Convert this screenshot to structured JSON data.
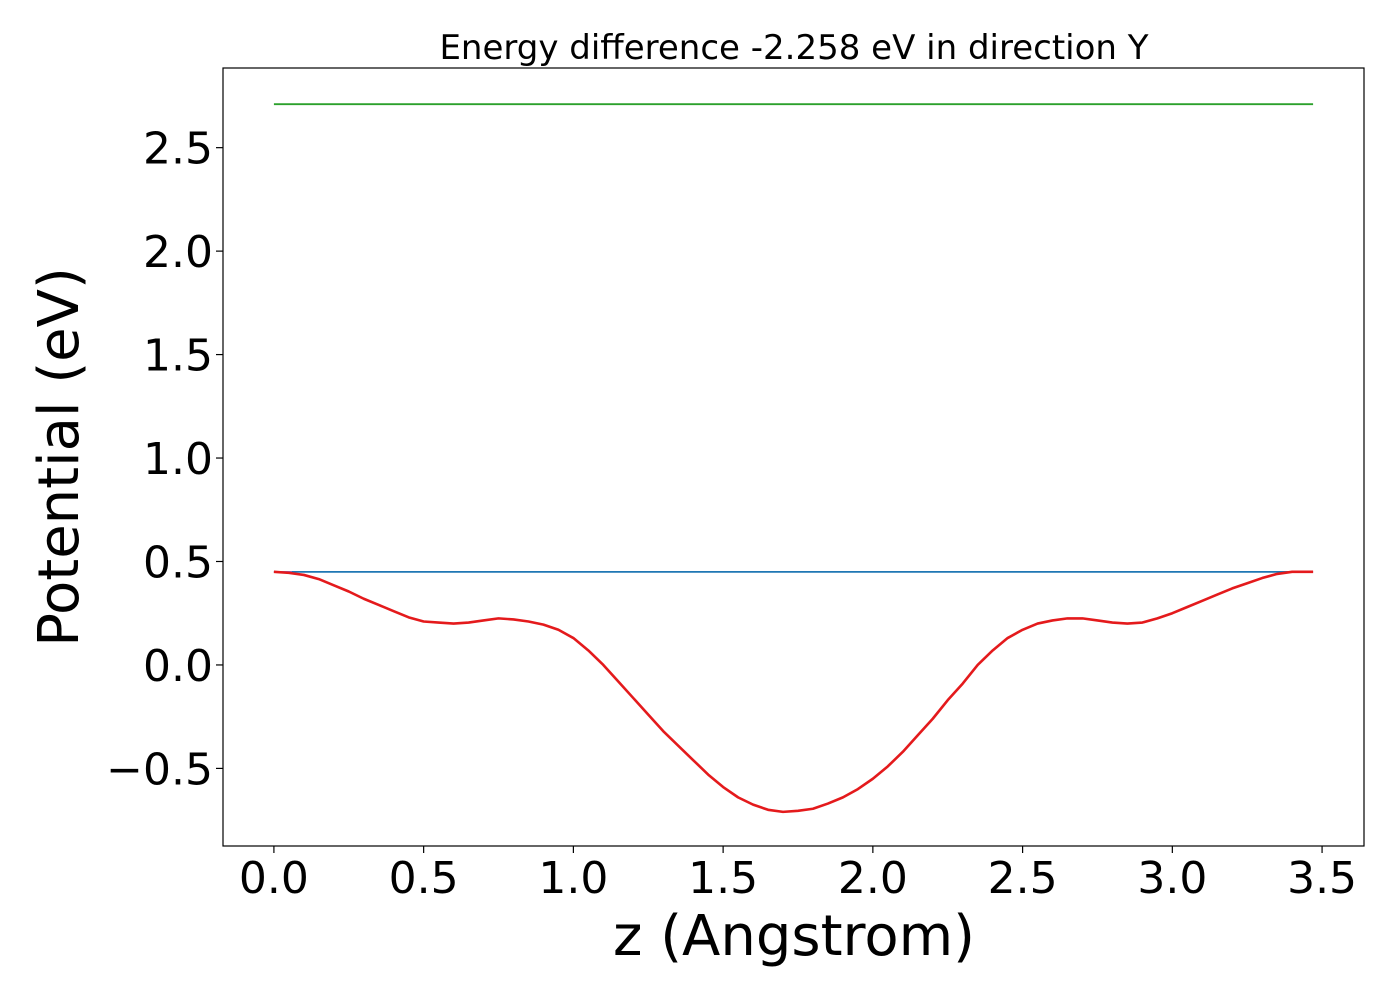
{
  "chart_data": {
    "type": "line",
    "title": "Energy difference -2.258 eV in direction Y",
    "xlabel": "z (Angstrom)",
    "ylabel": "Potential (eV)",
    "xlim": [
      -0.17,
      3.64
    ],
    "ylim": [
      -0.875,
      2.885
    ],
    "xticks": [
      0.0,
      0.5,
      1.0,
      1.5,
      2.0,
      2.5,
      3.0,
      3.5
    ],
    "xtick_labels": [
      "0.0",
      "0.5",
      "1.0",
      "1.5",
      "2.0",
      "2.5",
      "3.0",
      "3.5"
    ],
    "yticks": [
      -0.5,
      0.0,
      0.5,
      1.0,
      1.5,
      2.0,
      2.5
    ],
    "ytick_labels": [
      "−0.5",
      "0.0",
      "0.5",
      "1.0",
      "1.5",
      "2.0",
      "2.5"
    ],
    "grid": false,
    "series": [
      {
        "color": "#2ca02c",
        "x": [
          0.0,
          3.47
        ],
        "y": [
          2.71,
          2.71
        ]
      },
      {
        "color": "#1f77b4",
        "x": [
          0.0,
          3.47
        ],
        "y": [
          0.45,
          0.45
        ]
      },
      {
        "color": "#9467bd",
        "x": [
          0.0,
          0.06
        ],
        "y": [
          0.45,
          0.45
        ]
      },
      {
        "color": "#e41a1c",
        "x": [
          0.0,
          0.05,
          0.1,
          0.15,
          0.2,
          0.25,
          0.3,
          0.35,
          0.4,
          0.45,
          0.5,
          0.55,
          0.6,
          0.65,
          0.7,
          0.75,
          0.8,
          0.85,
          0.9,
          0.95,
          1.0,
          1.05,
          1.1,
          1.15,
          1.2,
          1.25,
          1.3,
          1.35,
          1.4,
          1.45,
          1.5,
          1.55,
          1.6,
          1.65,
          1.7,
          1.75,
          1.8,
          1.85,
          1.9,
          1.95,
          2.0,
          2.05,
          2.1,
          2.15,
          2.2,
          2.25,
          2.3,
          2.35,
          2.4,
          2.45,
          2.5,
          2.55,
          2.6,
          2.65,
          2.7,
          2.75,
          2.8,
          2.85,
          2.9,
          2.95,
          3.0,
          3.05,
          3.1,
          3.15,
          3.2,
          3.25,
          3.3,
          3.35,
          3.4,
          3.47
        ],
        "y": [
          0.45,
          0.445,
          0.435,
          0.415,
          0.385,
          0.355,
          0.32,
          0.29,
          0.26,
          0.23,
          0.21,
          0.205,
          0.2,
          0.205,
          0.215,
          0.225,
          0.22,
          0.21,
          0.195,
          0.17,
          0.13,
          0.07,
          0.0,
          -0.08,
          -0.16,
          -0.24,
          -0.32,
          -0.39,
          -0.46,
          -0.53,
          -0.59,
          -0.64,
          -0.675,
          -0.7,
          -0.71,
          -0.705,
          -0.695,
          -0.67,
          -0.64,
          -0.6,
          -0.55,
          -0.49,
          -0.42,
          -0.34,
          -0.26,
          -0.17,
          -0.09,
          0.0,
          0.07,
          0.13,
          0.17,
          0.2,
          0.215,
          0.225,
          0.225,
          0.215,
          0.205,
          0.2,
          0.205,
          0.225,
          0.25,
          0.28,
          0.31,
          0.34,
          0.37,
          0.395,
          0.42,
          0.44,
          0.45,
          0.45
        ]
      }
    ]
  }
}
